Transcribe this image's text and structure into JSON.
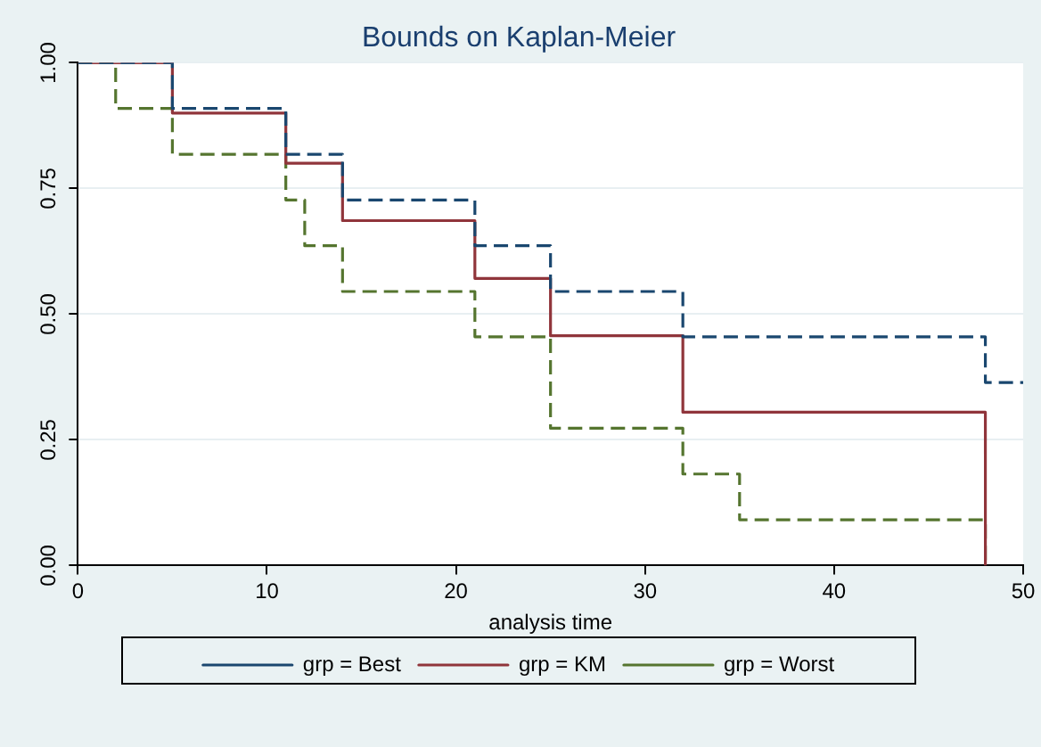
{
  "chart_data": {
    "type": "step",
    "title": "Bounds on Kaplan-Meier",
    "xlabel": "analysis time",
    "xlim": [
      0,
      50
    ],
    "xticks": [
      0,
      10,
      20,
      30,
      40,
      50
    ],
    "ylim": [
      0,
      1
    ],
    "yticks": [
      {
        "value": 0,
        "label": "0.00"
      },
      {
        "value": 0.25,
        "label": "0.25"
      },
      {
        "value": 0.5,
        "label": "0.50"
      },
      {
        "value": 0.75,
        "label": "0.75"
      },
      {
        "value": 1,
        "label": "1.00"
      }
    ],
    "grid": "y",
    "legend": "bottom",
    "series": [
      {
        "name": "grp = Best",
        "color": "#1a476f",
        "line_style": "dashed",
        "x": [
          0,
          5,
          11,
          14,
          21,
          25,
          32,
          48,
          50
        ],
        "values": [
          1,
          0.909,
          0.818,
          0.727,
          0.636,
          0.545,
          0.455,
          0.364,
          0.364
        ]
      },
      {
        "name": "grp = KM",
        "color": "#90353b",
        "line_style": "solid",
        "x": [
          0,
          5,
          11,
          14,
          21,
          25,
          32,
          48
        ],
        "values": [
          1,
          0.9,
          0.8,
          0.686,
          0.571,
          0.457,
          0.305,
          0
        ]
      },
      {
        "name": "grp = Worst",
        "color": "#55752f",
        "line_style": "dashed",
        "x": [
          0,
          2,
          5,
          11,
          12,
          14,
          21,
          25,
          32,
          35,
          48
        ],
        "values": [
          1,
          0.909,
          0.818,
          0.727,
          0.636,
          0.545,
          0.455,
          0.273,
          0.182,
          0.091,
          0
        ]
      }
    ]
  }
}
